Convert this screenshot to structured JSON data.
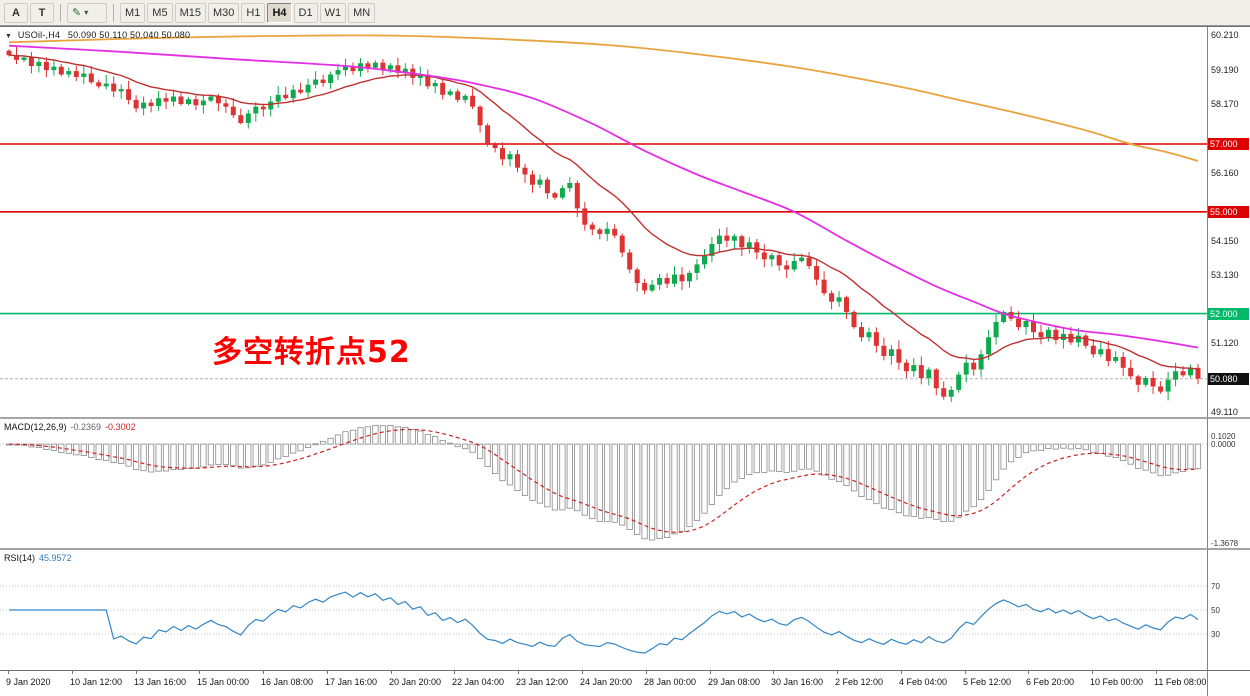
{
  "toolbar": {
    "pointer_tool_label": "A",
    "text_tool_label": "T",
    "dropdown_icon_glyph": "✎",
    "timeframes": [
      "M1",
      "M5",
      "M15",
      "M30",
      "H1",
      "H4",
      "D1",
      "W1",
      "MN"
    ],
    "active_timeframe": "H4"
  },
  "chart": {
    "title_symbol": "USOil-,H4",
    "title_ohlc": "50.090 50.110 50.040 50.080",
    "annotation_text": "多空转折点52",
    "annotation_color": "#ff0000",
    "plain_axis_labels": [
      {
        "value": 60.21,
        "label": "60.210"
      },
      {
        "value": 59.19,
        "label": "59.190"
      },
      {
        "value": 58.17,
        "label": "58.170"
      },
      {
        "value": 56.16,
        "label": "56.160"
      },
      {
        "value": 54.15,
        "label": "54.150"
      },
      {
        "value": 53.13,
        "label": "53.130"
      },
      {
        "value": 51.12,
        "label": "51.120"
      },
      {
        "value": 49.11,
        "label": "49.110"
      }
    ],
    "levels": [
      {
        "value": 57.0,
        "label": "57.000",
        "color": "#dd0000"
      },
      {
        "value": 55.0,
        "label": "55.000",
        "color": "#dd0000"
      },
      {
        "value": 52.0,
        "label": "52.000",
        "color": "#00b96b"
      }
    ],
    "current_price_label": "50.080",
    "current_price_badge_color": "#111111"
  },
  "chart_data": {
    "type": "candlestick",
    "symbol": "USOil-",
    "timeframe": "H4",
    "title": "USOil- H4 candlestick chart, downtrend from ~59.6 to 50.08",
    "y_range": [
      48.95,
      60.45
    ],
    "open_first": 59.75,
    "current_price": 50.08,
    "closes": [
      59.62,
      59.48,
      59.55,
      59.3,
      59.42,
      59.18,
      59.28,
      59.05,
      59.15,
      58.98,
      59.08,
      58.82,
      58.7,
      58.78,
      58.55,
      58.62,
      58.3,
      58.05,
      58.22,
      58.12,
      58.35,
      58.25,
      58.4,
      58.18,
      58.32,
      58.14,
      58.28,
      58.4,
      58.2,
      58.1,
      57.85,
      57.62,
      57.9,
      58.1,
      58.02,
      58.25,
      58.45,
      58.35,
      58.6,
      58.52,
      58.75,
      58.9,
      58.8,
      59.05,
      59.18,
      59.3,
      59.15,
      59.38,
      59.25,
      59.4,
      59.2,
      59.32,
      59.1,
      59.22,
      58.95,
      59.05,
      58.7,
      58.8,
      58.45,
      58.55,
      58.3,
      58.42,
      58.1,
      57.55,
      57.0,
      56.88,
      56.55,
      56.7,
      56.3,
      56.1,
      55.8,
      55.95,
      55.55,
      55.42,
      55.7,
      55.85,
      55.1,
      54.62,
      54.48,
      54.35,
      54.5,
      54.3,
      53.8,
      53.3,
      52.9,
      52.68,
      52.85,
      53.05,
      52.88,
      53.15,
      52.95,
      53.2,
      53.45,
      53.7,
      54.05,
      54.3,
      54.15,
      54.28,
      53.95,
      54.1,
      53.8,
      53.6,
      53.72,
      53.42,
      53.3,
      53.55,
      53.65,
      53.4,
      53.0,
      52.6,
      52.35,
      52.48,
      52.05,
      51.6,
      51.3,
      51.45,
      51.05,
      50.75,
      50.95,
      50.55,
      50.3,
      50.48,
      50.1,
      50.35,
      49.8,
      49.55,
      49.75,
      50.2,
      50.55,
      50.35,
      50.8,
      51.3,
      51.75,
      52.05,
      51.85,
      51.6,
      51.78,
      51.45,
      51.3,
      51.52,
      51.22,
      51.4,
      51.15,
      51.35,
      51.05,
      50.8,
      50.95,
      50.6,
      50.72,
      50.4,
      50.15,
      49.9,
      50.1,
      49.85,
      49.7,
      50.05,
      50.3,
      50.18,
      50.4,
      50.08
    ],
    "ma_fast_period": 16,
    "ma_mid_anchors": [
      [
        0,
        59.9
      ],
      [
        15,
        59.72
      ],
      [
        30,
        59.5
      ],
      [
        45,
        59.3
      ],
      [
        55,
        59.05
      ],
      [
        62,
        58.8
      ],
      [
        70,
        58.35
      ],
      [
        78,
        57.6
      ],
      [
        85,
        56.8
      ],
      [
        92,
        56.1
      ],
      [
        98,
        55.6
      ],
      [
        105,
        55.0
      ],
      [
        112,
        54.15
      ],
      [
        118,
        53.45
      ],
      [
        124,
        52.8
      ],
      [
        129,
        52.35
      ],
      [
        133,
        52.0
      ],
      [
        138,
        51.72
      ],
      [
        143,
        51.5
      ],
      [
        148,
        51.38
      ],
      [
        153,
        51.22
      ],
      [
        159,
        51.0
      ]
    ],
    "ma_slow_anchors": [
      [
        0,
        60.0
      ],
      [
        15,
        60.1
      ],
      [
        30,
        60.17
      ],
      [
        50,
        60.2
      ],
      [
        65,
        60.1
      ],
      [
        80,
        59.92
      ],
      [
        92,
        59.65
      ],
      [
        104,
        59.3
      ],
      [
        112,
        59.0
      ],
      [
        120,
        58.65
      ],
      [
        128,
        58.25
      ],
      [
        136,
        57.85
      ],
      [
        144,
        57.4
      ],
      [
        150,
        57.0
      ],
      [
        155,
        56.75
      ],
      [
        159,
        56.5
      ]
    ],
    "colors": {
      "up": "#0fa94e",
      "down": "#dd3333",
      "ma_fast": "#c03030",
      "ma_mid": "#e52ee5",
      "ma_slow": "#e8a33d",
      "rsi": "#3385c6",
      "macd_signal": "#cc2222",
      "macd_bar_stroke": "#8a8a8a",
      "level_red": "#dd0000",
      "level_green": "#00b96b"
    }
  },
  "macd_panel": {
    "name": "MACD(12,26,9)",
    "value_main": "-0.2369",
    "value_signal": "-0.3002",
    "axis_labels": [
      "0.1020",
      "0.0000",
      "-1.3678"
    ],
    "params": [
      12,
      26,
      9
    ]
  },
  "rsi_panel": {
    "name": "RSI(14)",
    "value": "45.9572",
    "period": 14,
    "levels": [
      70,
      50,
      30
    ]
  },
  "time_axis": {
    "labels": [
      "9 Jan 2020",
      "10 Jan 12:00",
      "13 Jan 16:00",
      "15 Jan 00:00",
      "16 Jan 08:00",
      "17 Jan 16:00",
      "20 Jan 20:00",
      "22 Jan 04:00",
      "23 Jan 12:00",
      "24 Jan 20:00",
      "28 Jan 00:00",
      "29 Jan 08:00",
      "30 Jan 16:00",
      "2 Feb 12:00",
      "4 Feb 04:00",
      "5 Feb 12:00",
      "6 Feb 20:00",
      "10 Feb 00:00",
      "11 Feb 08:00"
    ]
  }
}
